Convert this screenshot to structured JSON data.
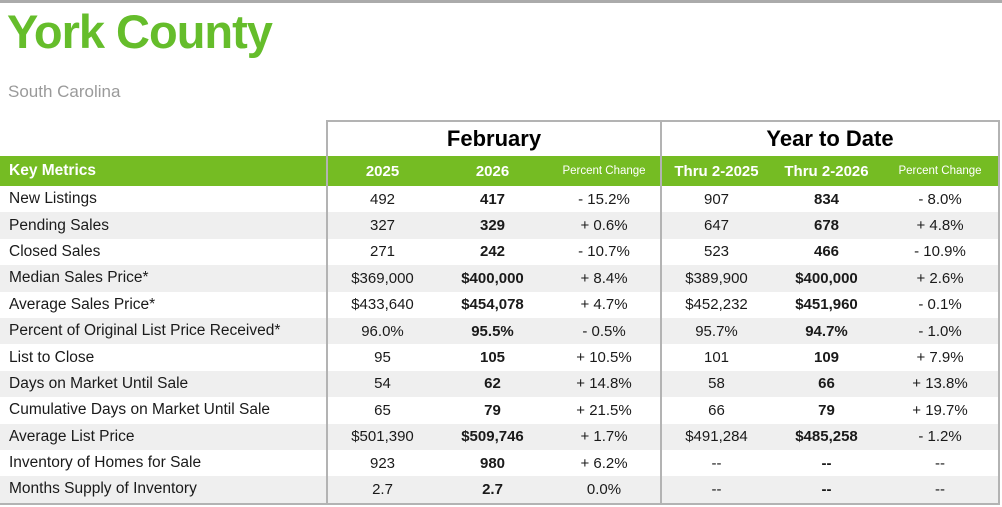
{
  "page": {
    "title": "York County",
    "subtitle": "South Carolina"
  },
  "colors": {
    "brand_green_header": "#75bc23",
    "title_green": "#65bd2b",
    "stripe_gray": "#efefef",
    "border_gray": "#b3b3b3",
    "subtitle_gray": "#9a9a9a"
  },
  "table": {
    "group_headers": {
      "february": "February",
      "ytd": "Year to Date"
    },
    "columns": {
      "key_metrics": "Key Metrics",
      "feb_2025": "2025",
      "feb_2026": "2026",
      "feb_pct": "Percent Change",
      "ytd_2025": "Thru 2-2025",
      "ytd_2026": "Thru 2-2026",
      "ytd_pct": "Percent Change"
    },
    "rows": [
      {
        "metric": "New Listings",
        "feb_2025": "492",
        "feb_2026": "417",
        "feb_pct": "- 15.2%",
        "ytd_2025": "907",
        "ytd_2026": "834",
        "ytd_pct": "- 8.0%"
      },
      {
        "metric": "Pending Sales",
        "feb_2025": "327",
        "feb_2026": "329",
        "feb_pct": "+ 0.6%",
        "ytd_2025": "647",
        "ytd_2026": "678",
        "ytd_pct": "+ 4.8%"
      },
      {
        "metric": "Closed Sales",
        "feb_2025": "271",
        "feb_2026": "242",
        "feb_pct": "- 10.7%",
        "ytd_2025": "523",
        "ytd_2026": "466",
        "ytd_pct": "- 10.9%"
      },
      {
        "metric": "Median Sales Price*",
        "feb_2025": "$369,000",
        "feb_2026": "$400,000",
        "feb_pct": "+ 8.4%",
        "ytd_2025": "$389,900",
        "ytd_2026": "$400,000",
        "ytd_pct": "+ 2.6%"
      },
      {
        "metric": "Average Sales Price*",
        "feb_2025": "$433,640",
        "feb_2026": "$454,078",
        "feb_pct": "+ 4.7%",
        "ytd_2025": "$452,232",
        "ytd_2026": "$451,960",
        "ytd_pct": "- 0.1%"
      },
      {
        "metric": "Percent of Original List Price Received*",
        "feb_2025": "96.0%",
        "feb_2026": "95.5%",
        "feb_pct": "- 0.5%",
        "ytd_2025": "95.7%",
        "ytd_2026": "94.7%",
        "ytd_pct": "- 1.0%"
      },
      {
        "metric": "List to Close",
        "feb_2025": "95",
        "feb_2026": "105",
        "feb_pct": "+ 10.5%",
        "ytd_2025": "101",
        "ytd_2026": "109",
        "ytd_pct": "+ 7.9%"
      },
      {
        "metric": "Days on Market Until Sale",
        "feb_2025": "54",
        "feb_2026": "62",
        "feb_pct": "+ 14.8%",
        "ytd_2025": "58",
        "ytd_2026": "66",
        "ytd_pct": "+ 13.8%"
      },
      {
        "metric": "Cumulative Days on Market Until Sale",
        "feb_2025": "65",
        "feb_2026": "79",
        "feb_pct": "+ 21.5%",
        "ytd_2025": "66",
        "ytd_2026": "79",
        "ytd_pct": "+ 19.7%"
      },
      {
        "metric": "Average List Price",
        "feb_2025": "$501,390",
        "feb_2026": "$509,746",
        "feb_pct": "+ 1.7%",
        "ytd_2025": "$491,284",
        "ytd_2026": "$485,258",
        "ytd_pct": "- 1.2%"
      },
      {
        "metric": "Inventory of Homes for Sale",
        "feb_2025": "923",
        "feb_2026": "980",
        "feb_pct": "+ 6.2%",
        "ytd_2025": "--",
        "ytd_2026": "--",
        "ytd_pct": "--"
      },
      {
        "metric": "Months Supply of Inventory",
        "feb_2025": "2.7",
        "feb_2026": "2.7",
        "feb_pct": "0.0%",
        "ytd_2025": "--",
        "ytd_2026": "--",
        "ytd_pct": "--"
      }
    ]
  }
}
